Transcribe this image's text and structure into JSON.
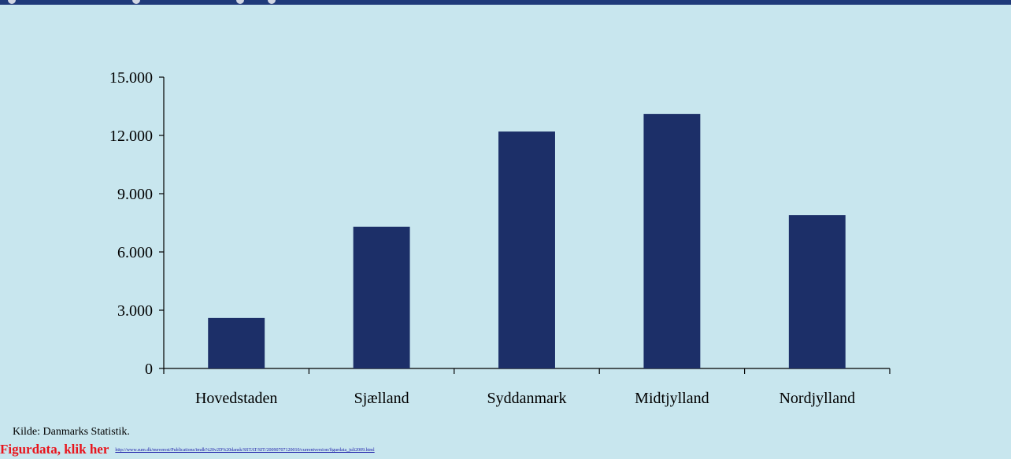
{
  "chart_data": {
    "type": "bar",
    "categories": [
      "Hovedstaden",
      "Sjælland",
      "Syddanmark",
      "Midtjylland",
      "Nordjylland"
    ],
    "values": [
      2600,
      7300,
      12200,
      13100,
      7900
    ],
    "y_ticks": [
      "0",
      "3.000",
      "6.000",
      "9.000",
      "12.000",
      "15.000"
    ],
    "ylim": [
      0,
      15000
    ],
    "grid": false,
    "bar_color": "#1c2f68"
  },
  "footer": {
    "source": "Kilde: Danmarks Statistik.",
    "link_label": "Figurdata, klik her",
    "link_url": "http://www.sum.dk/meverest/Publications/imdk%20v2D%20dansk/SSTAT/SIT/20090707120010/currentversion/figurdata_juli2009.html"
  },
  "colors": {
    "background": "#c8e6ee",
    "accent_band": "#1f3a7a",
    "link_label": "#e8141c",
    "link_url": "#1a1aa8"
  }
}
